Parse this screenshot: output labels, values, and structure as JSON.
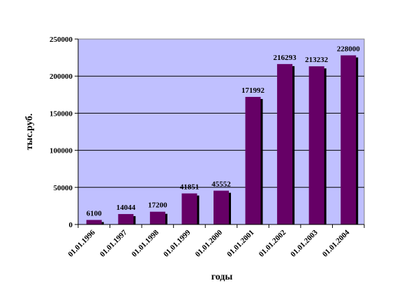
{
  "chart_data": {
    "type": "bar",
    "categories": [
      "01.01.1996",
      "01.01.1997",
      "01.01.1998",
      "01.01.1999",
      "01.01.2000",
      "01.01.2001",
      "01.01.2002",
      "01.01.2003",
      "01.01.2004"
    ],
    "values": [
      6100,
      14044,
      17200,
      41851,
      45552,
      171992,
      216293,
      213232,
      228000
    ],
    "value_labels": [
      "6100",
      "14044",
      "17200",
      "41851",
      "45552",
      "171992",
      "216293",
      "213232",
      "228000"
    ],
    "y_ticks": [
      "0",
      "50000",
      "100000",
      "150000",
      "200000",
      "250000"
    ],
    "xlabel": "годы",
    "ylabel": "тыс.руб.",
    "ylim": [
      0,
      250000
    ],
    "grid": true,
    "legend": "none",
    "colors": {
      "bar": "#660066",
      "bar_shadow": "#000000",
      "plot_bg": "#c0c0ff",
      "grid": "#000000"
    }
  }
}
